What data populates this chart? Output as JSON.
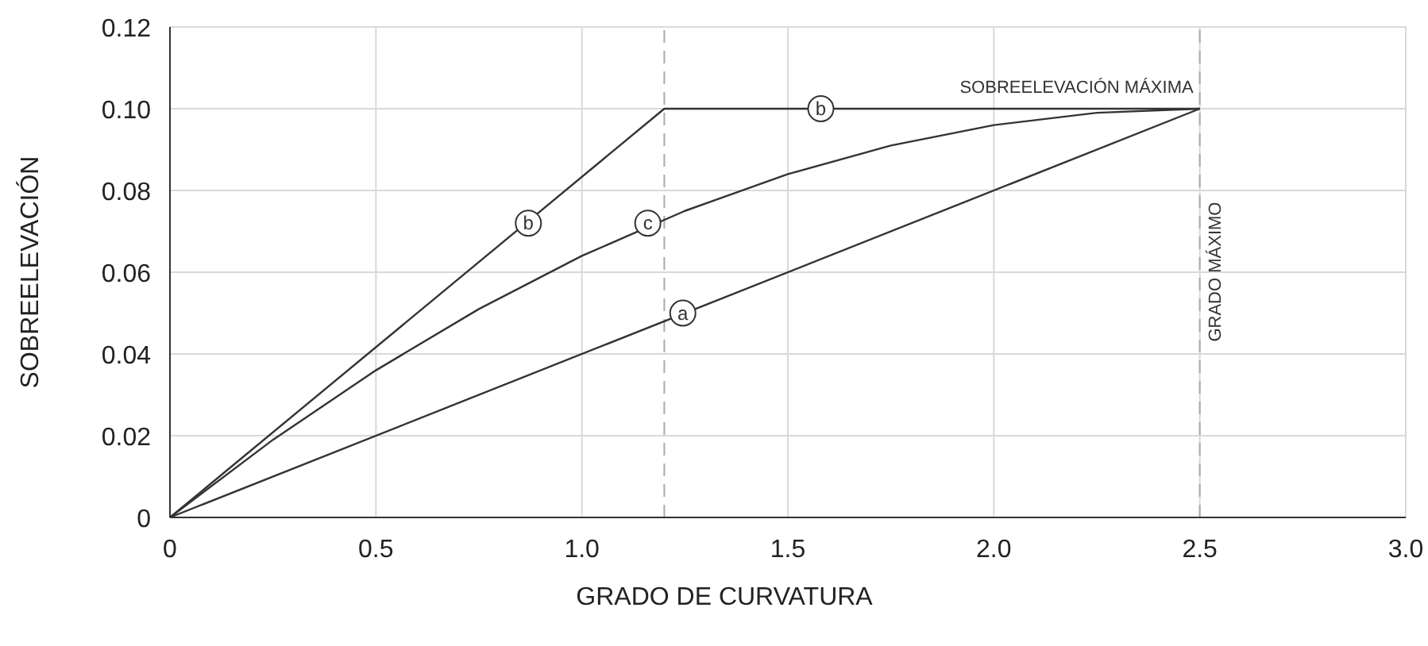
{
  "chart_data": {
    "type": "line",
    "xlabel": "GRADO DE CURVATURA",
    "ylabel": "SOBREELEVACIÓN",
    "xlim": [
      0,
      3
    ],
    "xticks": [
      0,
      0.5,
      {
        "value": 1,
        "label": "1.0"
      },
      1.5,
      {
        "value": 2,
        "label": "2.0"
      },
      2.5,
      {
        "value": 3,
        "label": "3.0"
      }
    ],
    "ylim": [
      0,
      0.12
    ],
    "yticks": [
      0,
      0.02,
      0.04,
      0.06,
      0.08,
      {
        "value": 0.1,
        "label": "0.10"
      },
      0.12
    ],
    "grid": true,
    "series": [
      {
        "color": "#333333",
        "x": [
          0,
          2.5
        ],
        "values": [
          0,
          0.1
        ]
      },
      {
        "color": "#333333",
        "x": [
          0,
          1.2,
          2.5
        ],
        "values": [
          0,
          0.1,
          0.1
        ]
      },
      {
        "color": "#333333",
        "x": [
          0,
          0.25,
          0.5,
          0.75,
          1,
          1.25,
          1.5,
          1.75,
          2,
          2.25,
          2.5
        ],
        "values": [
          0,
          0.019,
          0.036,
          0.051,
          0.064,
          0.075,
          0.084,
          0.091,
          0.096,
          0.099,
          0.1
        ]
      }
    ],
    "ref_lines": [
      {
        "axis": "x",
        "value": 1.2,
        "color": "#aaaaaa",
        "line_style": "dashed"
      },
      {
        "axis": "x",
        "value": 2.5,
        "label": "GRADO MÁXIMO",
        "color": "#aaaaaa",
        "line_style": "dashed"
      }
    ],
    "annotations": [
      {
        "text": "a",
        "x": 1.245,
        "y": 0.05
      },
      {
        "text": "b",
        "x": 0.87,
        "y": 0.072
      },
      {
        "text": "b",
        "x": 1.58,
        "y": 0.1
      },
      {
        "text": "c",
        "x": 1.16,
        "y": 0.072
      },
      {
        "text": "SOBREELEVACIÓN MÁXIMA",
        "x": 2.5,
        "y": 0.1
      }
    ]
  }
}
